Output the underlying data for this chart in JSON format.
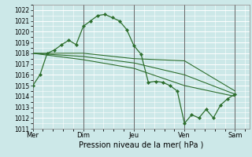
{
  "xlabel": "Pression niveau de la mer( hPa )",
  "bg_color": "#cce8e8",
  "grid_color": "#ffffff",
  "line_color": "#2d6e2d",
  "vline_color": "#666666",
  "ylim": [
    1011,
    1022.5
  ],
  "xlim": [
    0,
    15.0
  ],
  "yticks": [
    1011,
    1012,
    1013,
    1014,
    1015,
    1016,
    1017,
    1018,
    1019,
    1020,
    1021,
    1022
  ],
  "x_day_positions": [
    0.0,
    3.5,
    7.0,
    10.5,
    14.0
  ],
  "x_day_labels": [
    "Mer",
    "Dim",
    "Jeu",
    "Ven",
    "Sam"
  ],
  "vlines_x": [
    0.0,
    3.5,
    7.0,
    10.5,
    14.0
  ],
  "lines": [
    {
      "x": [
        0.0,
        0.5,
        1.0,
        1.5,
        2.0,
        2.5,
        3.0,
        3.5,
        4.0,
        4.5,
        5.0,
        5.5,
        6.0,
        6.5,
        7.0,
        7.5,
        8.0,
        8.5,
        9.0,
        9.5,
        10.0,
        10.5,
        11.0,
        11.5,
        12.0,
        12.5,
        13.0,
        13.5,
        14.0
      ],
      "y": [
        1015.0,
        1016.0,
        1018.0,
        1018.3,
        1018.8,
        1019.2,
        1018.8,
        1020.5,
        1021.0,
        1021.5,
        1021.6,
        1021.3,
        1021.0,
        1020.2,
        1018.7,
        1017.9,
        1015.3,
        1015.4,
        1015.3,
        1015.0,
        1014.5,
        1011.5,
        1012.3,
        1012.0,
        1012.8,
        1012.0,
        1013.2,
        1013.8,
        1014.2
      ],
      "marker": "D",
      "markersize": 2.0,
      "linewidth": 0.9,
      "zorder": 5
    },
    {
      "x": [
        0.0,
        3.5,
        7.0,
        10.5,
        14.0
      ],
      "y": [
        1018.0,
        1018.0,
        1017.5,
        1017.3,
        1014.5
      ],
      "marker": null,
      "markersize": 0,
      "linewidth": 0.8,
      "zorder": 4
    },
    {
      "x": [
        0.0,
        3.5,
        7.0,
        10.5,
        14.0
      ],
      "y": [
        1018.0,
        1017.7,
        1017.1,
        1016.0,
        1014.2
      ],
      "marker": null,
      "markersize": 0,
      "linewidth": 0.8,
      "zorder": 4
    },
    {
      "x": [
        0.0,
        3.5,
        7.0,
        10.5,
        14.0
      ],
      "y": [
        1018.0,
        1017.4,
        1016.6,
        1015.0,
        1014.0
      ],
      "marker": null,
      "markersize": 0,
      "linewidth": 0.8,
      "zorder": 4
    }
  ],
  "tick_fontsize": 5.5,
  "xlabel_fontsize": 7.0,
  "xlabel_pad": 2
}
